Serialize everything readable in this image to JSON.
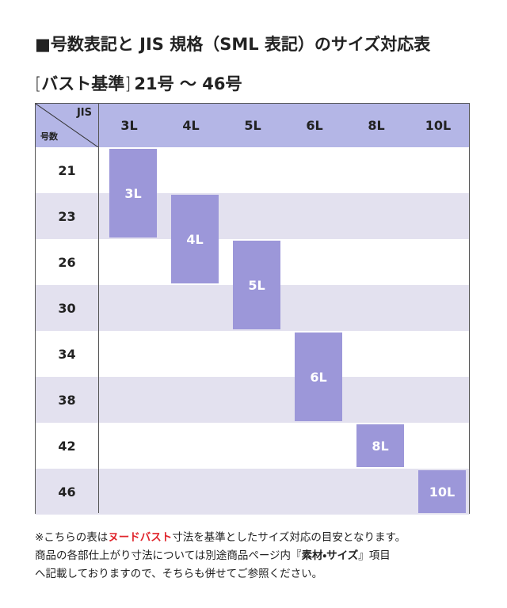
{
  "header": {
    "title": "■号数表記と JIS 規格（SML 表記）のサイズ対応表",
    "subtitle": {
      "open": "[",
      "basis": "バスト基準",
      "close": "]",
      "range": "21号 ～ 46号"
    }
  },
  "table": {
    "corner": {
      "top": "JIS",
      "bottom": "号数"
    },
    "columns": [
      "3L",
      "4L",
      "5L",
      "6L",
      "8L",
      "10L"
    ],
    "rows": [
      "21",
      "23",
      "26",
      "30",
      "34",
      "38",
      "42",
      "46"
    ],
    "blocks": [
      {
        "label": "3L",
        "column": 0,
        "rows": [
          0,
          1
        ]
      },
      {
        "label": "4L",
        "column": 1,
        "rows": [
          1,
          2
        ]
      },
      {
        "label": "5L",
        "column": 2,
        "rows": [
          2,
          3
        ]
      },
      {
        "label": "6L",
        "column": 3,
        "rows": [
          4,
          5
        ]
      },
      {
        "label": "8L",
        "column": 4,
        "rows": [
          6,
          6
        ]
      },
      {
        "label": "10L",
        "column": 5,
        "rows": [
          7,
          7
        ]
      }
    ]
  },
  "note": {
    "lines": [
      [
        "※こちらの表は",
        "ヌードバスト",
        "寸法を基準としたサイズ対応の目安となります。"
      ],
      [
        "商品の各部仕上がり寸法については別途商品ページ内『",
        "素材・サイズ",
        "』項目"
      ],
      [
        "へ記載しておりますので、そちらも併せてご参照ください。"
      ]
    ]
  }
}
